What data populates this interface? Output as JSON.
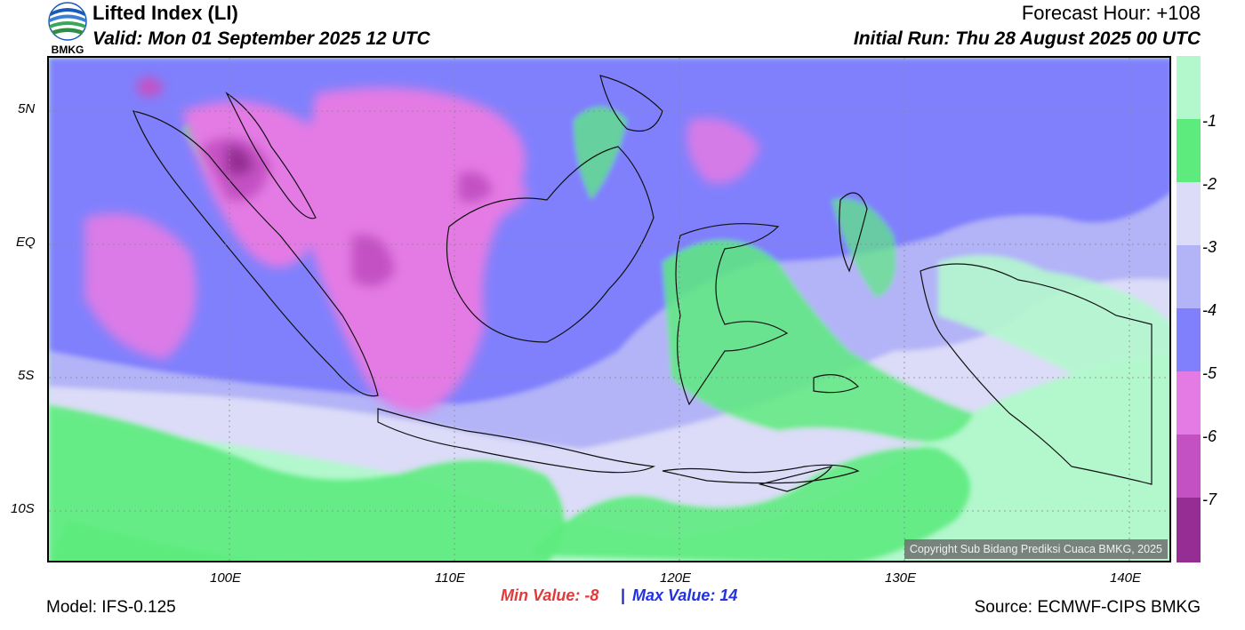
{
  "header": {
    "logo_text": "BMKG",
    "title": "Lifted Index (LI)",
    "valid": "Valid: Mon 01 September 2025 12 UTC",
    "forecast_hour": "Forecast Hour: +108",
    "initial_run": "Initial Run: Thu 28 August 2025 00 UTC"
  },
  "axes": {
    "lat_labels": [
      "5N",
      "EQ",
      "5S",
      "10S"
    ],
    "lon_labels": [
      "100E",
      "110E",
      "120E",
      "130E",
      "140E"
    ]
  },
  "legend": {
    "labels": [
      "-1",
      "-2",
      "-3",
      "-4",
      "-5",
      "-6",
      "-7"
    ],
    "colors": [
      "#b3f7cd",
      "#5deb7e",
      "#dcdcf8",
      "#b3b3f7",
      "#8080fd",
      "#e47ae4",
      "#c451c4",
      "#952d95"
    ]
  },
  "stats": {
    "min_label": "Min Value:  -8",
    "separator": "|",
    "max_label": "Max Value:  14"
  },
  "footer": {
    "model": "Model: IFS-0.125",
    "source": "Source: ECMWF-CIPS BMKG",
    "copyright": "Copyright Sub Bidang Prediksi Cuaca BMKG, 2025"
  }
}
